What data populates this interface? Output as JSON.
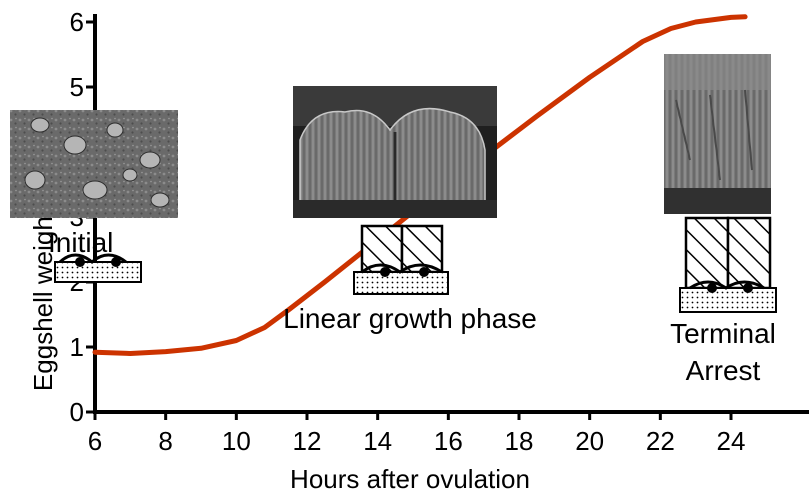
{
  "chart_data": {
    "type": "line",
    "title": "",
    "xlabel": "Hours after ovulation",
    "ylabel": "Eggshell weight",
    "xlim": [
      6,
      26
    ],
    "ylim": [
      0,
      6
    ],
    "x_ticks": [
      "6",
      "8",
      "10",
      "12",
      "14",
      "16",
      "18",
      "20",
      "22",
      "24"
    ],
    "y_ticks": [
      "0",
      "1",
      "2",
      "3",
      "4",
      "5",
      "6"
    ],
    "grid": false,
    "series": [
      {
        "name": "",
        "color": "#cc3300",
        "x": [
          6.0,
          7.0,
          8.0,
          9.0,
          10.0,
          10.8,
          11.5,
          12.5,
          14.0,
          15.5,
          17.0,
          18.5,
          20.0,
          21.5,
          22.3,
          23.0,
          24.0,
          24.4
        ],
        "y": [
          0.92,
          0.9,
          0.93,
          0.98,
          1.1,
          1.3,
          1.58,
          2.0,
          2.65,
          3.3,
          3.93,
          4.55,
          5.15,
          5.7,
          5.9,
          6.0,
          6.07,
          6.08
        ]
      }
    ],
    "annotations": [
      {
        "text": "Initial",
        "icon": "sem-initial-stage"
      },
      {
        "text": "Linear growth phase",
        "icon": "sem-linear-growth"
      },
      {
        "text": "Terminal",
        "icon": "sem-terminal-arrest"
      },
      {
        "text": "Arrest",
        "icon": "sem-terminal-arrest"
      }
    ]
  }
}
